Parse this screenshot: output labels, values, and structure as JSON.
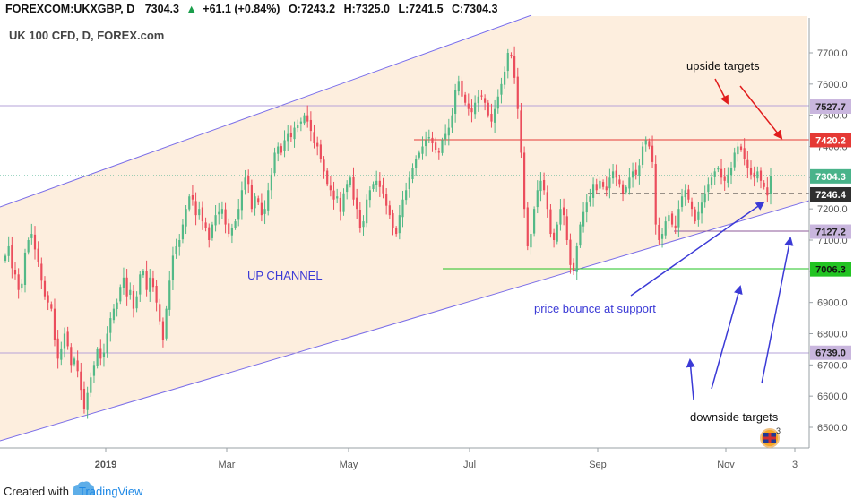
{
  "header": {
    "symbol": "FOREXCOM:UKXGBP, D",
    "last": "7304.3",
    "change": "+61.1 (+0.84%)",
    "open_label": "O:",
    "open": "7243.2",
    "high_label": "H:",
    "high": "7325.0",
    "low_label": "L:",
    "low": "7241.5",
    "close_label": "C:",
    "close": "7304.3",
    "up_arrow_icon": "triangle-up-icon"
  },
  "subtitle": "UK 100 CFD, D, FOREX.com",
  "footer": {
    "created_with": "Created with",
    "brand": "TradingView",
    "brand_icon": "tradingview-cloud-icon"
  },
  "flag_badge": {
    "icon": "uk-flag-icon",
    "count": "3"
  },
  "colors": {
    "up": "#53b987",
    "down": "#eb4d5c",
    "channel_line": "#7b6ee8",
    "channel_fill": "#fde9d6",
    "resistance": "#e53935",
    "support_green": "#22c322",
    "target_line": "#8e6bb0",
    "annotation_blue": "#3b3ad6",
    "annotation_red": "#e11c1c"
  },
  "chart_data": {
    "type": "candlestick",
    "title": "UK 100 CFD, D, FOREX.com",
    "x_tick_labels": [
      "2019",
      "Mar",
      "May",
      "Jul",
      "Sep",
      "Nov",
      "3"
    ],
    "y_tick_labels": [
      "6500.0",
      "6600.0",
      "6700.0",
      "6800.0",
      "6900.0",
      "7000.0",
      "7100.0",
      "7200.0",
      "7300.0",
      "7400.0",
      "7500.0",
      "7600.0",
      "7700.0"
    ],
    "ylim": [
      6450,
      7790
    ],
    "price_levels": [
      {
        "label": "7527.7",
        "value": 7527.7,
        "kind": "target"
      },
      {
        "label": "7420.2",
        "value": 7420.2,
        "kind": "resistance"
      },
      {
        "label": "7304.3",
        "value": 7304.3,
        "kind": "last"
      },
      {
        "label": "7246.4",
        "value": 7246.4,
        "kind": "support"
      },
      {
        "label": "7127.2",
        "value": 7127.2,
        "kind": "target"
      },
      {
        "label": "7006.3",
        "value": 7006.3,
        "kind": "support"
      },
      {
        "label": "6739.0",
        "value": 6739.0,
        "kind": "target"
      }
    ],
    "annotations": {
      "channel": "UP CHANNEL",
      "upside": "upside targets",
      "bounce": "price bounce at support",
      "downside": "downside targets"
    },
    "closes": [
      7050,
      7080,
      7010,
      6990,
      6940,
      6960,
      7060,
      7100,
      7120,
      7070,
      7030,
      6970,
      6920,
      6900,
      6880,
      6780,
      6720,
      6750,
      6800,
      6760,
      6700,
      6720,
      6680,
      6620,
      6560,
      6610,
      6660,
      6700,
      6750,
      6720,
      6740,
      6800,
      6850,
      6880,
      6900,
      6950,
      6980,
      6920,
      6940,
      6880,
      6920,
      6990,
      7000,
      6940,
      6980,
      6950,
      6900,
      6840,
      6780,
      6880,
      6970,
      7050,
      7080,
      7100,
      7150,
      7200,
      7240,
      7230,
      7180,
      7200,
      7160,
      7140,
      7100,
      7150,
      7180,
      7190,
      7200,
      7150,
      7120,
      7140,
      7160,
      7200,
      7260,
      7300,
      7280,
      7200,
      7240,
      7220,
      7180,
      7200,
      7260,
      7310,
      7380,
      7400,
      7380,
      7420,
      7440,
      7430,
      7460,
      7470,
      7480,
      7500,
      7480,
      7450,
      7410,
      7400,
      7360,
      7320,
      7280,
      7260,
      7230,
      7240,
      7190,
      7250,
      7280,
      7300,
      7230,
      7200,
      7140,
      7160,
      7230,
      7260,
      7280,
      7290,
      7270,
      7250,
      7210,
      7180,
      7140,
      7120,
      7180,
      7230,
      7260,
      7300,
      7330,
      7360,
      7380,
      7400,
      7420,
      7430,
      7410,
      7390,
      7380,
      7420,
      7440,
      7460,
      7500,
      7580,
      7610,
      7560,
      7540,
      7520,
      7510,
      7540,
      7560,
      7560,
      7540,
      7500,
      7480,
      7520,
      7560,
      7600,
      7640,
      7700,
      7690,
      7620,
      7520,
      7380,
      7200,
      7080,
      7120,
      7200,
      7260,
      7290,
      7260,
      7200,
      7120,
      7100,
      7150,
      7200,
      7180,
      7100,
      7020,
      7000,
      7080,
      7150,
      7190,
      7220,
      7240,
      7280,
      7260,
      7290,
      7270,
      7260,
      7300,
      7320,
      7300,
      7280,
      7250,
      7270,
      7300,
      7320,
      7310,
      7340,
      7400,
      7420,
      7400,
      7350,
      7150,
      7100,
      7120,
      7160,
      7180,
      7150,
      7140,
      7200,
      7240,
      7260,
      7230,
      7200,
      7160,
      7190,
      7220,
      7250,
      7280,
      7300,
      7320,
      7330,
      7300,
      7290,
      7310,
      7330,
      7380,
      7400,
      7390,
      7360,
      7330,
      7310,
      7300,
      7320,
      7290,
      7270,
      7243,
      7304
    ]
  }
}
